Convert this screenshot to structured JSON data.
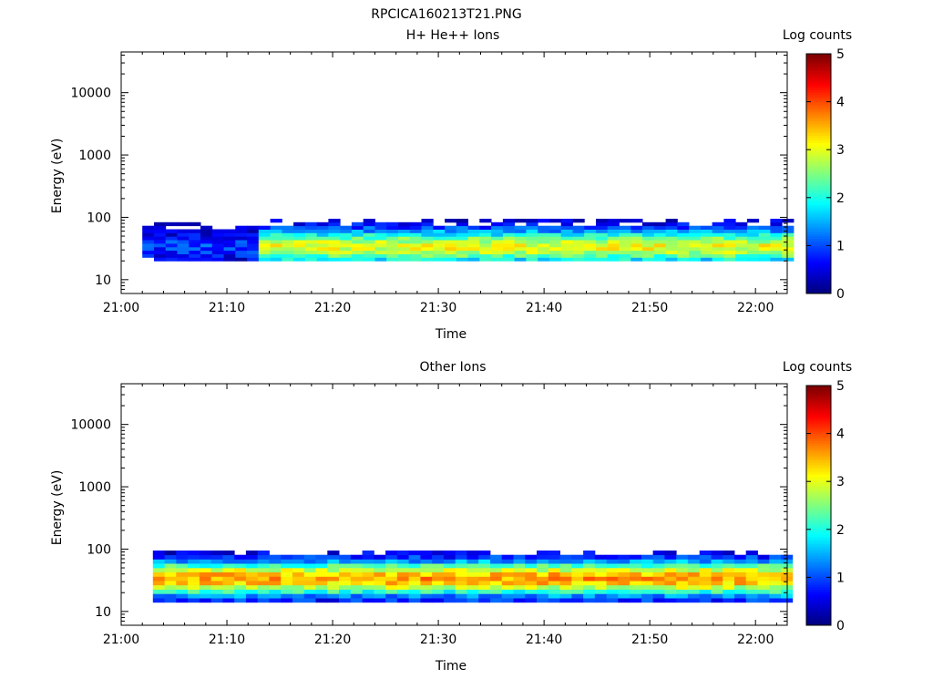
{
  "page_title": "RPCICA160213T21.PNG",
  "chart_data": [
    {
      "type": "heatmap",
      "title": "H+ He++ Ions",
      "xlabel": "Time",
      "ylabel": "Energy (eV)",
      "x_ticks": [
        "21:00",
        "21:10",
        "21:20",
        "21:30",
        "21:40",
        "21:50",
        "22:00"
      ],
      "x_range": [
        "21:00",
        "22:03"
      ],
      "y_ticks": [
        "10",
        "100",
        "1000",
        "10000"
      ],
      "y_range": [
        6,
        45000
      ],
      "y_scale": "log",
      "colorbar": {
        "label": "Log counts",
        "range": [
          0,
          5
        ],
        "ticks": [
          "0",
          "1",
          "2",
          "3",
          "4",
          "5"
        ]
      },
      "time_bin_minutes": 1.1,
      "data_start": "21:02",
      "data_end": "22:03",
      "energy_range_eV": [
        20,
        95
      ],
      "peak_energy_eV": 34,
      "peak_log_counts": 3.0
    },
    {
      "type": "heatmap",
      "title": "Other Ions",
      "xlabel": "Time",
      "ylabel": "Energy (eV)",
      "x_ticks": [
        "21:00",
        "21:10",
        "21:20",
        "21:30",
        "21:40",
        "21:50",
        "22:00"
      ],
      "x_range": [
        "21:00",
        "22:03"
      ],
      "y_ticks": [
        "10",
        "100",
        "1000",
        "10000"
      ],
      "y_range": [
        6,
        45000
      ],
      "y_scale": "log",
      "colorbar": {
        "label": "Log counts",
        "range": [
          0,
          5
        ],
        "ticks": [
          "0",
          "1",
          "2",
          "3",
          "4",
          "5"
        ]
      },
      "time_bin_minutes": 1.1,
      "data_start": "21:03",
      "data_end": "22:03",
      "energy_range_eV": [
        14,
        95
      ],
      "peak_energy_eV": 34,
      "peak_log_counts": 3.6
    }
  ]
}
